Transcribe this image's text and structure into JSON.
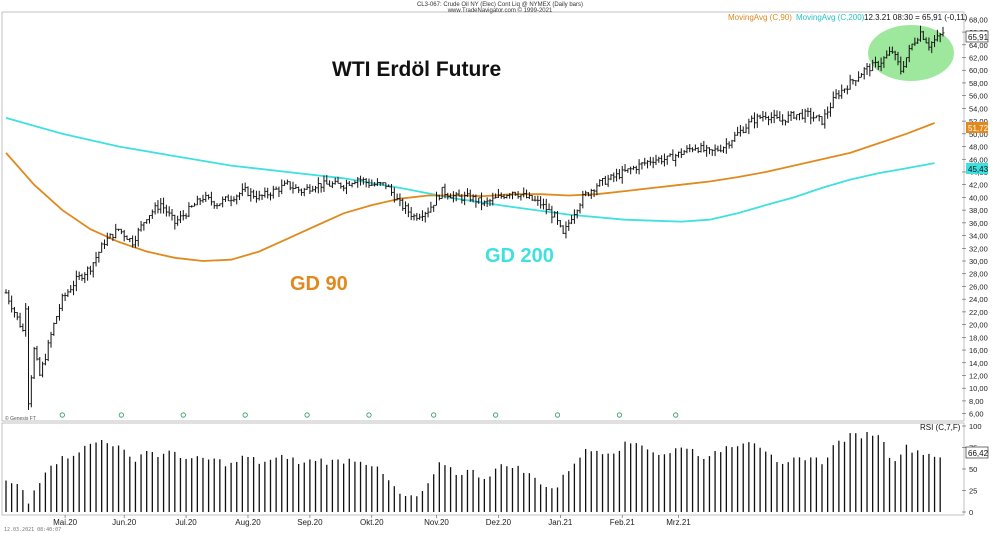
{
  "header": {
    "line1": "CL3-067: Crude Oil NY (Elec) Cont Liq @ NYMEX (Daily bars)",
    "line2": "www.TradeNavigator.com © 1999-2021"
  },
  "legend": {
    "ma90": "MovingAvg (C,90)",
    "ma200": "MovingAvg (C,200)",
    "quote": "12.3.21 08:30 = 65,91 (-0,11)"
  },
  "annotations": {
    "title": "WTI Erdöl Future",
    "gd90": "GD 90",
    "gd200": "GD 200"
  },
  "colors": {
    "ma90": "#e08a1e",
    "ma200": "#3fe0e0",
    "bars": "#111111",
    "highlight": "#7de07d"
  },
  "rsi": {
    "label": "RSI (C,7,F)",
    "value_tag": "66,42",
    "ticks": [
      "100",
      "75",
      "50",
      "25",
      "0"
    ]
  },
  "footer": {
    "timestamp": "12.03.2021 08:40:07",
    "credit": "© Genesis FT"
  },
  "chart_data": [
    {
      "type": "ohlc",
      "y_ticks": [
        "68,00",
        "66,00",
        "64,00",
        "62,00",
        "60,00",
        "58,00",
        "56,00",
        "54,00",
        "52,00",
        "50,00",
        "48,00",
        "46,00",
        "44,00",
        "42,00",
        "40,00",
        "38,00",
        "36,00",
        "34,00",
        "32,00",
        "30,00",
        "28,00",
        "26,00",
        "24,00",
        "22,00",
        "20,00",
        "18,00",
        "16,00",
        "14,00",
        "12,00",
        "10,00",
        "8,00",
        "6,00"
      ],
      "ylim": [
        5,
        69
      ],
      "x_months": [
        "Mai.20",
        "Jun.20",
        "Jul.20",
        "Aug.20",
        "Sep.20",
        "Okt.20",
        "Nov.20",
        "Dez.20",
        "Jan.21",
        "Feb.21",
        "Mrz.21"
      ],
      "last_close_tag": "65,91",
      "ma90_tag": "51,72",
      "ma200_tag": "45,43",
      "close_path": [
        [
          0,
          25
        ],
        [
          3,
          22
        ],
        [
          6,
          19
        ],
        [
          7,
          23
        ],
        [
          8,
          8
        ],
        [
          10,
          16
        ],
        [
          12,
          12
        ],
        [
          14,
          15
        ],
        [
          17,
          20
        ],
        [
          20,
          24
        ],
        [
          25,
          27
        ],
        [
          30,
          29
        ],
        [
          35,
          33
        ],
        [
          40,
          35
        ],
        [
          45,
          33
        ],
        [
          50,
          37
        ],
        [
          55,
          39
        ],
        [
          60,
          36
        ],
        [
          65,
          38
        ],
        [
          70,
          40
        ],
        [
          75,
          39
        ],
        [
          80,
          40
        ],
        [
          85,
          41
        ],
        [
          90,
          40
        ],
        [
          95,
          41
        ],
        [
          100,
          42
        ],
        [
          105,
          41
        ],
        [
          110,
          42
        ],
        [
          115,
          42
        ],
        [
          120,
          42
        ],
        [
          125,
          43
        ],
        [
          130,
          42
        ],
        [
          135,
          42
        ],
        [
          140,
          39
        ],
        [
          145,
          37
        ],
        [
          150,
          38
        ],
        [
          155,
          41
        ],
        [
          160,
          40
        ],
        [
          165,
          40
        ],
        [
          170,
          39
        ],
        [
          175,
          40
        ],
        [
          180,
          41
        ],
        [
          185,
          40
        ],
        [
          190,
          39
        ],
        [
          195,
          37
        ],
        [
          198,
          34
        ],
        [
          201,
          37
        ],
        [
          205,
          40
        ],
        [
          210,
          42
        ],
        [
          215,
          43
        ],
        [
          220,
          44
        ],
        [
          225,
          45
        ],
        [
          230,
          46
        ],
        [
          235,
          46
        ],
        [
          240,
          47
        ],
        [
          245,
          48
        ],
        [
          250,
          47
        ],
        [
          255,
          48
        ],
        [
          260,
          50
        ],
        [
          265,
          52
        ],
        [
          270,
          53
        ],
        [
          275,
          52
        ],
        [
          280,
          53
        ],
        [
          285,
          53
        ],
        [
          290,
          52
        ],
        [
          295,
          56
        ],
        [
          300,
          58
        ],
        [
          305,
          60
        ],
        [
          310,
          61
        ],
        [
          315,
          63
        ],
        [
          318,
          60
        ],
        [
          322,
          64
        ],
        [
          325,
          66
        ],
        [
          328,
          64
        ],
        [
          331,
          65
        ],
        [
          333,
          65.9
        ]
      ],
      "ma90_path": [
        [
          0,
          47
        ],
        [
          10,
          42
        ],
        [
          20,
          38
        ],
        [
          30,
          35
        ],
        [
          40,
          33
        ],
        [
          50,
          31.5
        ],
        [
          60,
          30.5
        ],
        [
          70,
          30
        ],
        [
          80,
          30.2
        ],
        [
          90,
          31.5
        ],
        [
          100,
          33.5
        ],
        [
          110,
          35.5
        ],
        [
          120,
          37.5
        ],
        [
          130,
          38.8
        ],
        [
          140,
          39.8
        ],
        [
          150,
          40.3
        ],
        [
          160,
          40.3
        ],
        [
          170,
          40.2
        ],
        [
          180,
          40.5
        ],
        [
          190,
          40.5
        ],
        [
          200,
          40.3
        ],
        [
          210,
          40.5
        ],
        [
          220,
          41
        ],
        [
          230,
          41.5
        ],
        [
          240,
          42
        ],
        [
          250,
          42.5
        ],
        [
          260,
          43.2
        ],
        [
          270,
          44
        ],
        [
          280,
          45
        ],
        [
          290,
          46
        ],
        [
          300,
          47
        ],
        [
          310,
          48.5
        ],
        [
          320,
          50
        ],
        [
          330,
          51.7
        ]
      ],
      "ma200_path": [
        [
          0,
          52.5
        ],
        [
          20,
          50
        ],
        [
          40,
          48
        ],
        [
          60,
          46.5
        ],
        [
          80,
          45
        ],
        [
          100,
          44
        ],
        [
          120,
          43
        ],
        [
          140,
          41.5
        ],
        [
          160,
          39.8
        ],
        [
          180,
          38.5
        ],
        [
          200,
          37.3
        ],
        [
          220,
          36.5
        ],
        [
          240,
          36.2
        ],
        [
          250,
          36.5
        ],
        [
          260,
          37.5
        ],
        [
          270,
          38.8
        ],
        [
          280,
          40
        ],
        [
          290,
          41.5
        ],
        [
          300,
          42.8
        ],
        [
          310,
          43.8
        ],
        [
          320,
          44.6
        ],
        [
          330,
          45.4
        ]
      ]
    },
    {
      "type": "bar",
      "name": "RSI (C,7,F)",
      "ylim": [
        0,
        100
      ],
      "rsi_path": [
        [
          0,
          35
        ],
        [
          5,
          30
        ],
        [
          8,
          10
        ],
        [
          10,
          25
        ],
        [
          15,
          55
        ],
        [
          20,
          62
        ],
        [
          25,
          70
        ],
        [
          30,
          78
        ],
        [
          35,
          85
        ],
        [
          40,
          75
        ],
        [
          45,
          60
        ],
        [
          50,
          72
        ],
        [
          55,
          65
        ],
        [
          60,
          70
        ],
        [
          65,
          60
        ],
        [
          70,
          62
        ],
        [
          75,
          60
        ],
        [
          80,
          55
        ],
        [
          85,
          65
        ],
        [
          90,
          58
        ],
        [
          95,
          60
        ],
        [
          100,
          65
        ],
        [
          105,
          55
        ],
        [
          110,
          62
        ],
        [
          115,
          58
        ],
        [
          120,
          60
        ],
        [
          125,
          62
        ],
        [
          130,
          55
        ],
        [
          135,
          40
        ],
        [
          140,
          20
        ],
        [
          145,
          15
        ],
        [
          150,
          30
        ],
        [
          155,
          60
        ],
        [
          160,
          45
        ],
        [
          165,
          48
        ],
        [
          170,
          40
        ],
        [
          175,
          52
        ],
        [
          180,
          55
        ],
        [
          185,
          45
        ],
        [
          190,
          35
        ],
        [
          195,
          25
        ],
        [
          200,
          50
        ],
        [
          205,
          70
        ],
        [
          210,
          72
        ],
        [
          215,
          70
        ],
        [
          220,
          78
        ],
        [
          225,
          82
        ],
        [
          230,
          70
        ],
        [
          235,
          65
        ],
        [
          240,
          78
        ],
        [
          245,
          70
        ],
        [
          250,
          62
        ],
        [
          255,
          75
        ],
        [
          260,
          80
        ],
        [
          265,
          85
        ],
        [
          270,
          72
        ],
        [
          275,
          50
        ],
        [
          280,
          60
        ],
        [
          285,
          65
        ],
        [
          290,
          58
        ],
        [
          295,
          80
        ],
        [
          300,
          88
        ],
        [
          305,
          90
        ],
        [
          310,
          92
        ],
        [
          315,
          60
        ],
        [
          320,
          75
        ],
        [
          325,
          70
        ],
        [
          330,
          66
        ]
      ]
    }
  ]
}
